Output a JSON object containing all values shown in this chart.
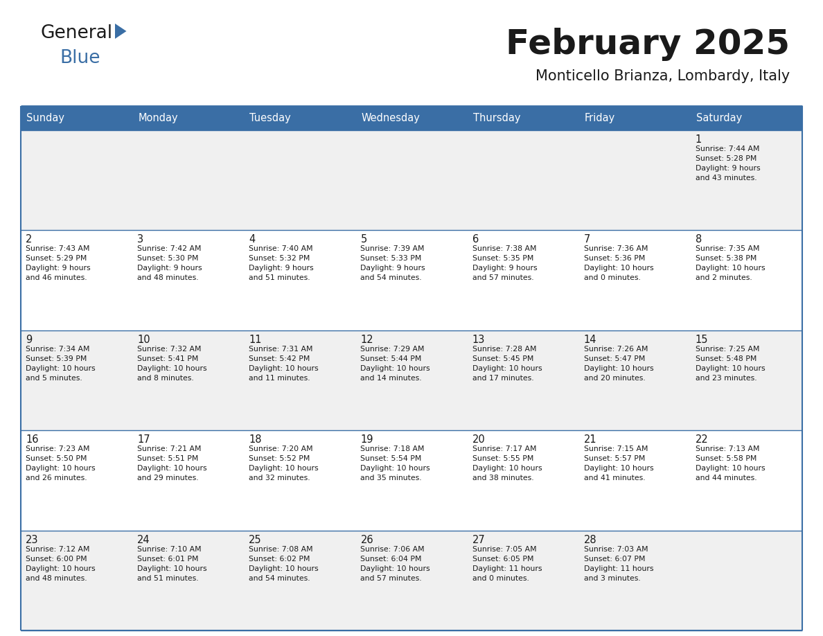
{
  "title": "February 2025",
  "subtitle": "Monticello Brianza, Lombardy, Italy",
  "header_color": "#3a6ea5",
  "header_text_color": "#ffffff",
  "cell_bg_row0": "#f0f0f0",
  "cell_bg_row1": "#ffffff",
  "cell_bg_row2": "#f0f0f0",
  "cell_bg_row3": "#ffffff",
  "cell_bg_row4": "#f0f0f0",
  "day_names": [
    "Sunday",
    "Monday",
    "Tuesday",
    "Wednesday",
    "Thursday",
    "Friday",
    "Saturday"
  ],
  "title_color": "#1a1a1a",
  "subtitle_color": "#1a1a1a",
  "text_color": "#1a1a1a",
  "line_color": "#3a6ea5",
  "logo_general_color": "#1a1a1a",
  "logo_blue_color": "#3a6ea5",
  "logo_triangle_color": "#3a6ea5",
  "calendar": [
    [
      {
        "day": "",
        "info": ""
      },
      {
        "day": "",
        "info": ""
      },
      {
        "day": "",
        "info": ""
      },
      {
        "day": "",
        "info": ""
      },
      {
        "day": "",
        "info": ""
      },
      {
        "day": "",
        "info": ""
      },
      {
        "day": "1",
        "info": "Sunrise: 7:44 AM\nSunset: 5:28 PM\nDaylight: 9 hours\nand 43 minutes."
      }
    ],
    [
      {
        "day": "2",
        "info": "Sunrise: 7:43 AM\nSunset: 5:29 PM\nDaylight: 9 hours\nand 46 minutes."
      },
      {
        "day": "3",
        "info": "Sunrise: 7:42 AM\nSunset: 5:30 PM\nDaylight: 9 hours\nand 48 minutes."
      },
      {
        "day": "4",
        "info": "Sunrise: 7:40 AM\nSunset: 5:32 PM\nDaylight: 9 hours\nand 51 minutes."
      },
      {
        "day": "5",
        "info": "Sunrise: 7:39 AM\nSunset: 5:33 PM\nDaylight: 9 hours\nand 54 minutes."
      },
      {
        "day": "6",
        "info": "Sunrise: 7:38 AM\nSunset: 5:35 PM\nDaylight: 9 hours\nand 57 minutes."
      },
      {
        "day": "7",
        "info": "Sunrise: 7:36 AM\nSunset: 5:36 PM\nDaylight: 10 hours\nand 0 minutes."
      },
      {
        "day": "8",
        "info": "Sunrise: 7:35 AM\nSunset: 5:38 PM\nDaylight: 10 hours\nand 2 minutes."
      }
    ],
    [
      {
        "day": "9",
        "info": "Sunrise: 7:34 AM\nSunset: 5:39 PM\nDaylight: 10 hours\nand 5 minutes."
      },
      {
        "day": "10",
        "info": "Sunrise: 7:32 AM\nSunset: 5:41 PM\nDaylight: 10 hours\nand 8 minutes."
      },
      {
        "day": "11",
        "info": "Sunrise: 7:31 AM\nSunset: 5:42 PM\nDaylight: 10 hours\nand 11 minutes."
      },
      {
        "day": "12",
        "info": "Sunrise: 7:29 AM\nSunset: 5:44 PM\nDaylight: 10 hours\nand 14 minutes."
      },
      {
        "day": "13",
        "info": "Sunrise: 7:28 AM\nSunset: 5:45 PM\nDaylight: 10 hours\nand 17 minutes."
      },
      {
        "day": "14",
        "info": "Sunrise: 7:26 AM\nSunset: 5:47 PM\nDaylight: 10 hours\nand 20 minutes."
      },
      {
        "day": "15",
        "info": "Sunrise: 7:25 AM\nSunset: 5:48 PM\nDaylight: 10 hours\nand 23 minutes."
      }
    ],
    [
      {
        "day": "16",
        "info": "Sunrise: 7:23 AM\nSunset: 5:50 PM\nDaylight: 10 hours\nand 26 minutes."
      },
      {
        "day": "17",
        "info": "Sunrise: 7:21 AM\nSunset: 5:51 PM\nDaylight: 10 hours\nand 29 minutes."
      },
      {
        "day": "18",
        "info": "Sunrise: 7:20 AM\nSunset: 5:52 PM\nDaylight: 10 hours\nand 32 minutes."
      },
      {
        "day": "19",
        "info": "Sunrise: 7:18 AM\nSunset: 5:54 PM\nDaylight: 10 hours\nand 35 minutes."
      },
      {
        "day": "20",
        "info": "Sunrise: 7:17 AM\nSunset: 5:55 PM\nDaylight: 10 hours\nand 38 minutes."
      },
      {
        "day": "21",
        "info": "Sunrise: 7:15 AM\nSunset: 5:57 PM\nDaylight: 10 hours\nand 41 minutes."
      },
      {
        "day": "22",
        "info": "Sunrise: 7:13 AM\nSunset: 5:58 PM\nDaylight: 10 hours\nand 44 minutes."
      }
    ],
    [
      {
        "day": "23",
        "info": "Sunrise: 7:12 AM\nSunset: 6:00 PM\nDaylight: 10 hours\nand 48 minutes."
      },
      {
        "day": "24",
        "info": "Sunrise: 7:10 AM\nSunset: 6:01 PM\nDaylight: 10 hours\nand 51 minutes."
      },
      {
        "day": "25",
        "info": "Sunrise: 7:08 AM\nSunset: 6:02 PM\nDaylight: 10 hours\nand 54 minutes."
      },
      {
        "day": "26",
        "info": "Sunrise: 7:06 AM\nSunset: 6:04 PM\nDaylight: 10 hours\nand 57 minutes."
      },
      {
        "day": "27",
        "info": "Sunrise: 7:05 AM\nSunset: 6:05 PM\nDaylight: 11 hours\nand 0 minutes."
      },
      {
        "day": "28",
        "info": "Sunrise: 7:03 AM\nSunset: 6:07 PM\nDaylight: 11 hours\nand 3 minutes."
      },
      {
        "day": "",
        "info": ""
      }
    ]
  ]
}
